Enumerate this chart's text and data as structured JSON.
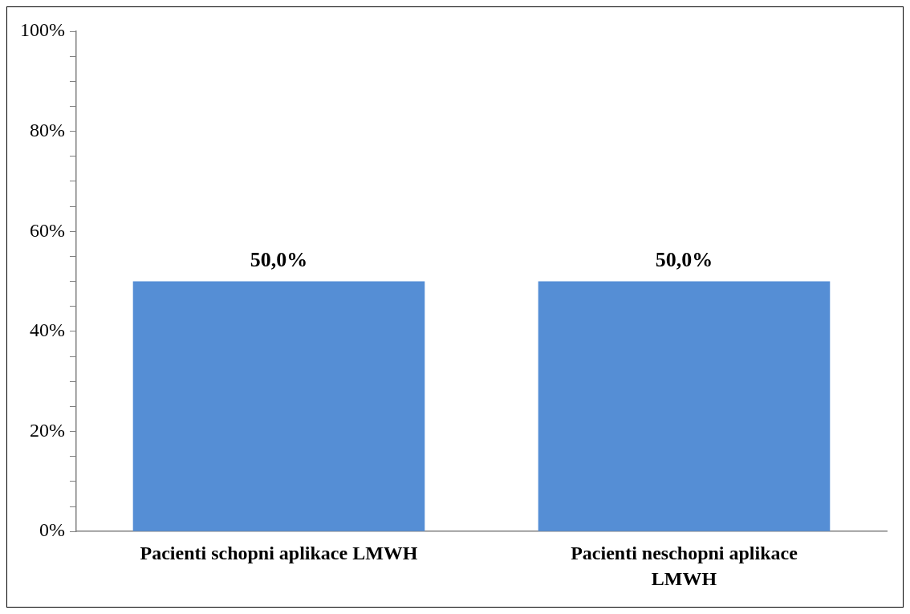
{
  "chart_data": {
    "type": "bar",
    "categories": [
      "Pacienti schopni aplikace LMWH",
      "Pacienti neschopni aplikace LMWH"
    ],
    "values": [
      50,
      50
    ],
    "value_labels": [
      "50,0%",
      "50,0%"
    ],
    "color": "#558ed5",
    "ylim": [
      0,
      100
    ],
    "yticks": [
      {
        "value": 0,
        "label": "0%"
      },
      {
        "value": 5,
        "label": null
      },
      {
        "value": 10,
        "label": null
      },
      {
        "value": 15,
        "label": null
      },
      {
        "value": 20,
        "label": "20%"
      },
      {
        "value": 25,
        "label": null
      },
      {
        "value": 30,
        "label": null
      },
      {
        "value": 35,
        "label": null
      },
      {
        "value": 40,
        "label": "40%"
      },
      {
        "value": 45,
        "label": null
      },
      {
        "value": 50,
        "label": null
      },
      {
        "value": 55,
        "label": null
      },
      {
        "value": 60,
        "label": "60%"
      },
      {
        "value": 65,
        "label": null
      },
      {
        "value": 70,
        "label": null
      },
      {
        "value": 75,
        "label": null
      },
      {
        "value": 80,
        "label": "80%"
      },
      {
        "value": 85,
        "label": null
      },
      {
        "value": 90,
        "label": null
      },
      {
        "value": 95,
        "label": null
      },
      {
        "value": 100,
        "label": "100%"
      }
    ],
    "grid": false,
    "legend": false
  }
}
